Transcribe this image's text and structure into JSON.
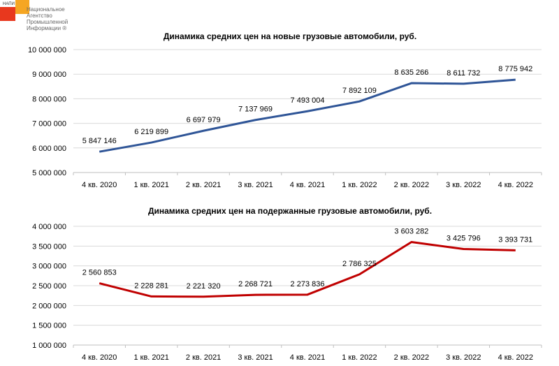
{
  "logo": {
    "abbr": "НАПИ",
    "line1": "Национальное",
    "line2": "Агентство",
    "line3": "Промышленной",
    "line4": "Информации ®"
  },
  "chart_data": [
    {
      "type": "line",
      "title": "Динамика средних цен на новые грузовые автомобили, руб.",
      "categories": [
        "4 кв. 2020",
        "1 кв. 2021",
        "2 кв. 2021",
        "3 кв. 2021",
        "4 кв. 2021",
        "1 кв. 2022",
        "2 кв. 2022",
        "3 кв. 2022",
        "4 кв. 2022"
      ],
      "values": [
        5847146,
        6219899,
        6697979,
        7137969,
        7493004,
        7892109,
        8635266,
        8611732,
        8775942
      ],
      "labels": [
        "5 847 146",
        "6 219 899",
        "6 697 979",
        "7 137 969",
        "7 493 004",
        "7 892 109",
        "8 635 266",
        "8 611 732",
        "8 775 942"
      ],
      "ylim": [
        5000000,
        10000000
      ],
      "yticks": [
        "5 000 000",
        "6 000 000",
        "7 000 000",
        "8 000 000",
        "9 000 000",
        "10 000 000"
      ],
      "color": "#2f5597",
      "grid": true,
      "legend": "none"
    },
    {
      "type": "line",
      "title": "Динамика средних цен на подержанные грузовые автомобили, руб.",
      "categories": [
        "4 кв. 2020",
        "1 кв. 2021",
        "2 кв. 2021",
        "3 кв. 2021",
        "4 кв. 2021",
        "1 кв. 2022",
        "2 кв. 2022",
        "3 кв. 2022",
        "4 кв. 2022"
      ],
      "values": [
        2560853,
        2228281,
        2221320,
        2268721,
        2273836,
        2786325,
        3603282,
        3425796,
        3393731
      ],
      "labels": [
        "2 560 853",
        "2 228 281",
        "2 221 320",
        "2 268 721",
        "2 273 836",
        "2 786 325",
        "3 603 282",
        "3 425 796",
        "3 393 731"
      ],
      "ylim": [
        1000000,
        4000000
      ],
      "yticks": [
        "1 000 000",
        "1 500 000",
        "2 000 000",
        "2 500 000",
        "3 000 000",
        "3 500 000",
        "4 000 000"
      ],
      "color": "#c00000",
      "grid": true,
      "legend": "none"
    }
  ]
}
